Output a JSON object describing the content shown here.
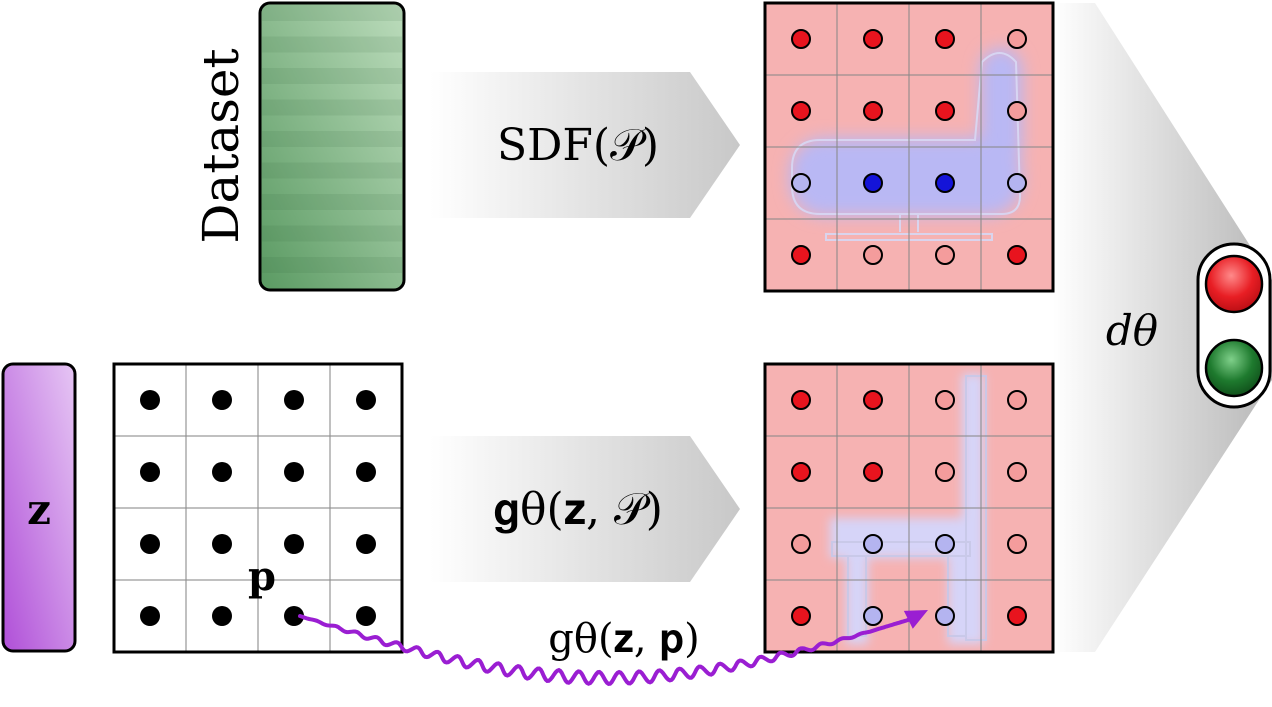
{
  "labels": {
    "dataset": "Dataset",
    "sdf": "SDF(𝒫)",
    "generator_grid": "𝐠θ(𝐳, 𝒫)",
    "generator_point": "gθ(𝐳, 𝐩)",
    "discriminator": "dθ",
    "latent": "𝐳",
    "point": "𝐩"
  },
  "colors": {
    "dataset_green_dark": "#5a9a62",
    "dataset_green_light": "#b8d8b8",
    "latent_purple_dark": "#b04fd8",
    "latent_purple_light": "#e6c6f4",
    "cell_pink": "#f6b2b2",
    "shape_blue": "#b9b8f4",
    "dot_red": "#e8141e",
    "dot_pink": "#f49c9c",
    "dot_light_blue": "#b4b4f0",
    "dot_blue": "#1414d8",
    "wave_purple": "#9a1ed2",
    "light_red": "#e81e24",
    "light_green": "#1e7a2e"
  },
  "grids": {
    "real_sdf": [
      [
        "red",
        "red",
        "red",
        "pink"
      ],
      [
        "red",
        "red",
        "red",
        "pink"
      ],
      [
        "lightblue",
        "blue",
        "blue",
        "lightblue"
      ],
      [
        "red",
        "pink",
        "pink",
        "red"
      ]
    ],
    "query_points": [
      [
        "black",
        "black",
        "black",
        "black"
      ],
      [
        "black",
        "black",
        "black",
        "black"
      ],
      [
        "black",
        "black",
        "black",
        "black"
      ],
      [
        "black",
        "black",
        "black",
        "black"
      ]
    ],
    "generated_sdf": [
      [
        "red",
        "red",
        "pink",
        "pink"
      ],
      [
        "red",
        "red",
        "pink",
        "pink"
      ],
      [
        "pink",
        "lightblue",
        "lightblue",
        "pink"
      ],
      [
        "red",
        "lightblue",
        "lightblue",
        "red"
      ]
    ]
  },
  "icons": {
    "discriminator": "traffic-light-icon",
    "mapping": "wavy-arrow-icon"
  }
}
